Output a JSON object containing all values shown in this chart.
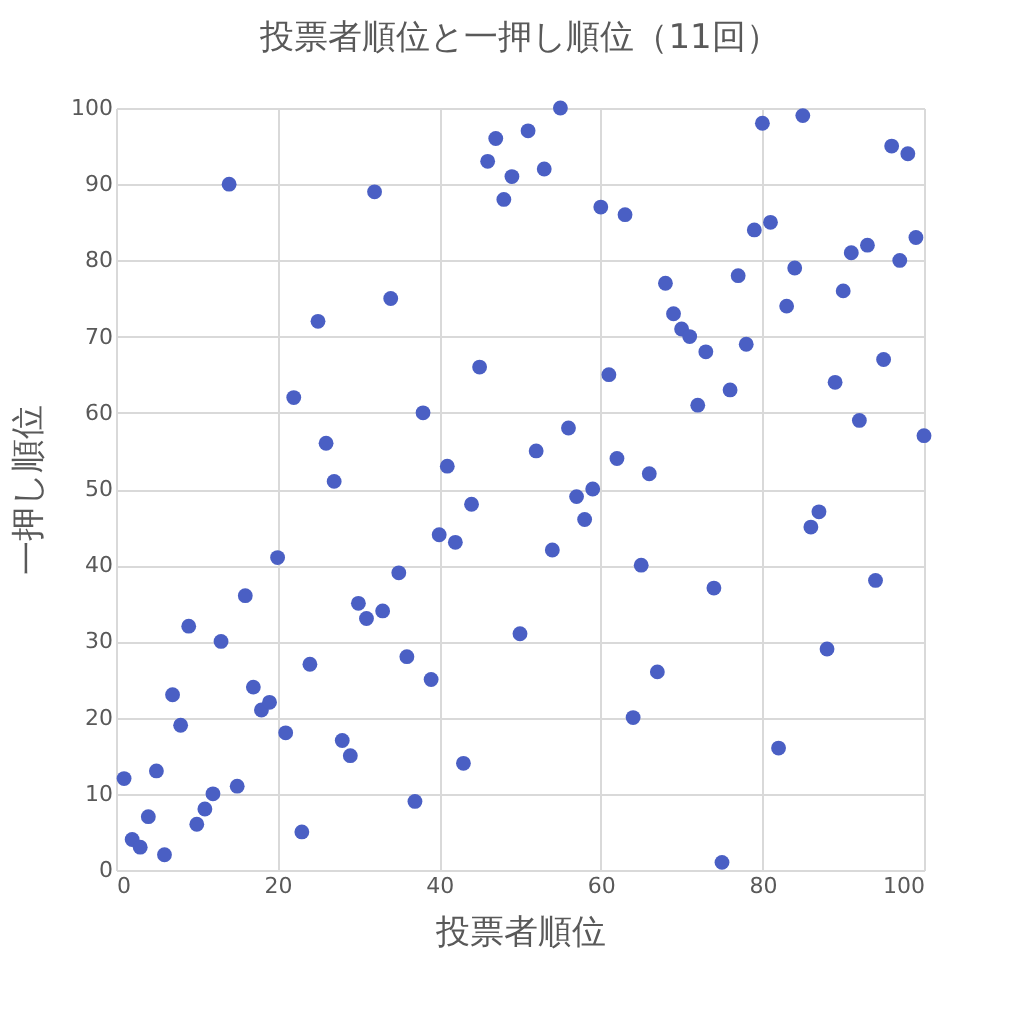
{
  "chart_data": {
    "type": "scatter",
    "title": "投票者順位と一押し順位（11回）",
    "xlabel": "投票者順位",
    "ylabel": "一押し順位",
    "x": [
      1,
      2,
      3,
      4,
      5,
      6,
      7,
      8,
      9,
      10,
      11,
      12,
      13,
      14,
      15,
      16,
      17,
      18,
      19,
      20,
      21,
      22,
      23,
      24,
      25,
      26,
      27,
      28,
      29,
      30,
      31,
      32,
      33,
      34,
      35,
      36,
      37,
      38,
      39,
      40,
      41,
      42,
      43,
      44,
      45,
      46,
      47,
      48,
      49,
      50,
      51,
      52,
      53,
      54,
      55,
      56,
      57,
      58,
      59,
      60,
      61,
      62,
      63,
      64,
      65,
      66,
      67,
      68,
      69,
      70,
      71,
      72,
      73,
      74,
      75,
      76,
      77,
      78,
      79,
      80,
      81,
      82,
      83,
      84,
      85,
      86,
      87,
      88,
      89,
      90,
      91,
      92,
      93,
      94,
      95,
      96,
      97,
      98,
      99,
      100
    ],
    "series": [
      {
        "color": "#4a5fc4",
        "values": [
          12,
          4,
          3,
          7,
          13,
          2,
          23,
          19,
          32,
          6,
          8,
          10,
          30,
          90,
          11,
          36,
          24,
          21,
          22,
          41,
          18,
          62,
          5,
          27,
          72,
          56,
          51,
          17,
          15,
          35,
          33,
          89,
          34,
          75,
          39,
          28,
          9,
          60,
          25,
          44,
          53,
          43,
          14,
          48,
          66,
          93,
          96,
          88,
          91,
          31,
          97,
          55,
          92,
          42,
          100,
          58,
          49,
          46,
          50,
          87,
          65,
          54,
          86,
          20,
          40,
          52,
          26,
          77,
          73,
          71,
          70,
          61,
          68,
          37,
          1,
          63,
          78,
          69,
          84,
          98,
          85,
          16,
          74,
          79,
          99,
          45,
          47,
          29,
          64,
          76,
          81,
          59,
          82,
          38,
          67,
          95,
          80,
          94,
          83,
          57
        ]
      }
    ],
    "xlim": [
      0,
      100
    ],
    "xticks": [
      0,
      20,
      40,
      60,
      80,
      100
    ],
    "ylim": [
      0,
      100
    ],
    "yticks": [
      0,
      10,
      20,
      30,
      40,
      50,
      60,
      70,
      80,
      90,
      100
    ],
    "grid": true,
    "marker": "circle",
    "legend": false
  }
}
